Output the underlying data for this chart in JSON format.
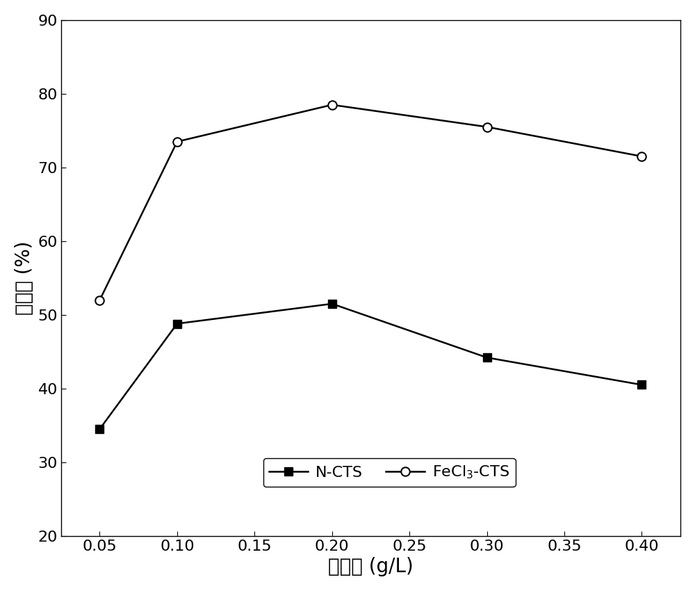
{
  "x": [
    0.05,
    0.1,
    0.2,
    0.3,
    0.4
  ],
  "ncts_y": [
    34.5,
    48.8,
    51.5,
    44.2,
    40.5
  ],
  "fecl3cts_y": [
    52.0,
    73.5,
    78.5,
    75.5,
    71.5
  ],
  "xlabel": "投加量 (g/L)",
  "ylabel": "脱色率 (%)",
  "xlim": [
    0.025,
    0.425
  ],
  "ylim": [
    20,
    90
  ],
  "xticks": [
    0.05,
    0.1,
    0.15,
    0.2,
    0.25,
    0.3,
    0.35,
    0.4
  ],
  "yticks": [
    20,
    30,
    40,
    50,
    60,
    70,
    80,
    90
  ],
  "ncts_label": "N-CTS",
  "line_color": "#000000",
  "marker_ncts": "s",
  "marker_fecl3": "o",
  "markersize": 9,
  "linewidth": 1.8,
  "xlabel_fontsize": 20,
  "ylabel_fontsize": 20,
  "tick_fontsize": 16,
  "legend_fontsize": 16
}
